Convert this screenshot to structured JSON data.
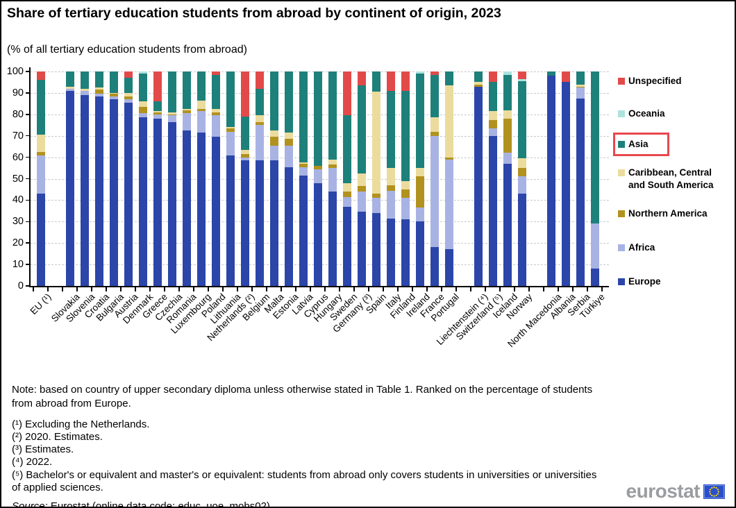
{
  "header": {
    "title": "Share of tertiary education students from abroad by continent of origin, 2023",
    "subtitle": "(% of all tertiary education students from abroad)"
  },
  "chart_data": {
    "type": "bar",
    "stacked": true,
    "unit": "% of all tertiary education students from abroad",
    "ylim": [
      0,
      100
    ],
    "yticks": [
      0,
      10,
      20,
      30,
      40,
      50,
      60,
      70,
      80,
      90,
      100
    ],
    "grid": "horizontal-dashed",
    "legend_position": "right",
    "series": [
      {
        "name": "Europe",
        "color": "#2b45a9"
      },
      {
        "name": "Africa",
        "color": "#a8b3e4"
      },
      {
        "name": "Northern America",
        "color": "#b2921f"
      },
      {
        "name": "Caribbean, Central and South America",
        "color": "#ebdc9e"
      },
      {
        "name": "Asia",
        "color": "#1e807a"
      },
      {
        "name": "Oceania",
        "color": "#aee2dd"
      },
      {
        "name": "Unspecified",
        "color": "#e24a4a"
      }
    ],
    "bars": [
      {
        "label": "EU (¹)",
        "values": [
          43,
          18,
          1.5,
          8,
          25.5,
          0,
          4
        ]
      },
      {
        "gap": true,
        "label": ""
      },
      {
        "label": "Slovakia",
        "values": [
          91,
          1,
          0,
          1,
          7,
          0,
          0
        ]
      },
      {
        "label": "Slovenia",
        "values": [
          89,
          2,
          0,
          1,
          8,
          0,
          0
        ]
      },
      {
        "label": "Croatia",
        "values": [
          88.5,
          1,
          2,
          1,
          7.5,
          0,
          0
        ]
      },
      {
        "label": "Bulgaria",
        "values": [
          87,
          1.5,
          1,
          0.5,
          10,
          0,
          0
        ]
      },
      {
        "label": "Austria",
        "values": [
          85.5,
          1.5,
          1.5,
          1.5,
          7,
          0,
          3
        ]
      },
      {
        "label": "Denmark",
        "values": [
          78.5,
          2,
          3,
          2.5,
          13,
          1,
          0
        ]
      },
      {
        "label": "Greece",
        "values": [
          78,
          2,
          1,
          0.5,
          4.5,
          0,
          14
        ]
      },
      {
        "label": "Czechia",
        "values": [
          76.5,
          3,
          0.5,
          1,
          19,
          0,
          0
        ]
      },
      {
        "label": "Romania",
        "values": [
          72.5,
          8,
          1.5,
          0.5,
          17.5,
          0,
          0
        ]
      },
      {
        "label": "Luxembourg",
        "values": [
          71.5,
          10,
          1,
          4,
          13.5,
          0,
          0
        ]
      },
      {
        "label": "Poland",
        "values": [
          69.5,
          10,
          1.5,
          1.5,
          16,
          0,
          1.5
        ]
      },
      {
        "label": "Lithuania",
        "values": [
          61,
          11,
          1.5,
          0.5,
          26,
          0,
          0
        ]
      },
      {
        "label": "Netherlands (²)",
        "values": [
          58.5,
          1.5,
          1.5,
          2,
          15.5,
          0,
          21
        ]
      },
      {
        "label": "Belgium",
        "values": [
          58.5,
          16.5,
          1.5,
          3,
          12.5,
          0,
          8
        ]
      },
      {
        "label": "Malta",
        "values": [
          58.5,
          7,
          4,
          3,
          27.5,
          0,
          0
        ]
      },
      {
        "label": "Estonia",
        "values": [
          55.5,
          10,
          3,
          3,
          28.5,
          0,
          0
        ]
      },
      {
        "label": "Latvia",
        "values": [
          51.5,
          4,
          1.5,
          0.5,
          42.5,
          0,
          0
        ]
      },
      {
        "label": "Cyprus",
        "values": [
          48,
          6.5,
          1.5,
          0,
          44,
          0,
          0
        ]
      },
      {
        "label": "Hungary",
        "values": [
          44,
          11,
          1.5,
          2.5,
          41,
          0,
          0
        ]
      },
      {
        "label": "Sweden",
        "values": [
          37,
          4.5,
          2.5,
          4,
          31.5,
          0,
          20.5
        ]
      },
      {
        "label": "Germany (³)",
        "values": [
          34.5,
          9.5,
          2.5,
          6,
          41,
          0,
          6.5
        ]
      },
      {
        "label": "Spain",
        "values": [
          34,
          7,
          2,
          47.5,
          9.5,
          0,
          0
        ]
      },
      {
        "label": "Italy",
        "values": [
          31.5,
          13,
          2.5,
          8,
          36,
          0,
          9
        ]
      },
      {
        "label": "Finland",
        "values": [
          31,
          10,
          4,
          4,
          42,
          0,
          9
        ]
      },
      {
        "label": "Ireland",
        "values": [
          30,
          6.5,
          14.5,
          4,
          44,
          1,
          0
        ]
      },
      {
        "label": "France",
        "values": [
          18,
          52,
          2,
          6.5,
          20,
          0,
          1.5
        ]
      },
      {
        "label": "Portugal",
        "values": [
          17,
          42,
          1,
          33.5,
          6.5,
          0,
          0
        ]
      },
      {
        "gap": true,
        "label": ""
      },
      {
        "label": "Liechtenstein (⁴)",
        "values": [
          93,
          0,
          1,
          1,
          5,
          0,
          0
        ]
      },
      {
        "label": "Switzerland (⁵)",
        "values": [
          70,
          3.5,
          4,
          4,
          13.5,
          0,
          5
        ]
      },
      {
        "label": "Iceland",
        "values": [
          57,
          5,
          16,
          4,
          16.5,
          1.5,
          0
        ]
      },
      {
        "label": "Norway",
        "values": [
          43,
          8,
          4,
          4.5,
          36,
          1,
          3.5
        ]
      },
      {
        "gap": true,
        "label": ""
      },
      {
        "label": "North Macedonia",
        "values": [
          98,
          0,
          0,
          0,
          2,
          0,
          0
        ]
      },
      {
        "label": "Albania",
        "values": [
          95,
          0,
          0,
          0,
          0,
          0,
          5
        ]
      },
      {
        "label": "Serbia",
        "values": [
          87.5,
          5,
          0.5,
          1,
          6,
          0,
          0
        ]
      },
      {
        "label": "Türkiye",
        "values": [
          8,
          21,
          0,
          0,
          71,
          0,
          0
        ]
      }
    ]
  },
  "legend": {
    "items": [
      {
        "label": "Unspecified",
        "color": "#e24a4a",
        "highlighted": false
      },
      {
        "label": "Oceania",
        "color": "#aee2dd",
        "highlighted": false
      },
      {
        "label": "Asia",
        "color": "#1e807a",
        "highlighted": true
      },
      {
        "label": "Caribbean, Central and South America",
        "color": "#ebdc9e",
        "highlighted": false
      },
      {
        "label": "Northern America",
        "color": "#b2921f",
        "highlighted": false
      },
      {
        "label": "Africa",
        "color": "#a8b3e4",
        "highlighted": false
      },
      {
        "label": "Europe",
        "color": "#2b45a9",
        "highlighted": false
      }
    ],
    "highlight_color": "#e8474e"
  },
  "notes": {
    "note": "Note: based on country of upper secondary diploma unless otherwise stated in Table 1. Ranked on the percentage of students from abroad from Europe.",
    "footnotes": [
      "(¹) Excluding the Netherlands.",
      "(²) 2020. Estimates.",
      "(³) Estimates.",
      "(⁴) 2022.",
      "(⁵) Bachelor's or equivalent and master's or equivalent: students from abroad only covers students in universities or universities of applied sciences."
    ],
    "source_label": "Source:",
    "source_text": " Eurostat (online data code: educ_uoe_mobs02)"
  },
  "branding": {
    "logo_text": "eurostat"
  }
}
